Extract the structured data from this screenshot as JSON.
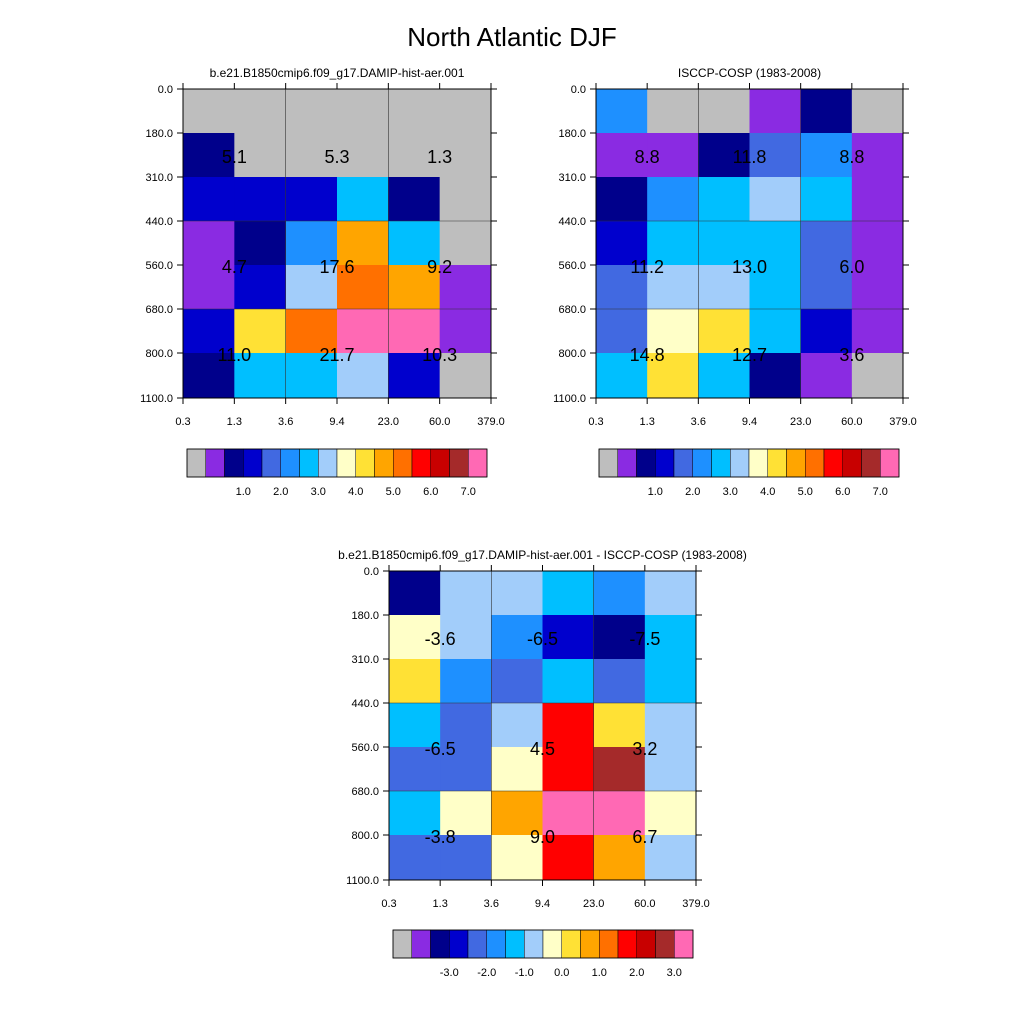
{
  "figure_title": "North Atlantic DJF",
  "palette": {
    "gray": "#BEBEBE",
    "purple": "#8A2BE2",
    "navy": "#00008B",
    "blue": "#0000CD",
    "royal": "#4169E1",
    "dodger": "#1E90FF",
    "sky": "#00BFFF",
    "lightblue": "#A2CDFA",
    "cream": "#FFFFC8",
    "gold": "#FFE135",
    "orange": "#FFA500",
    "darkorange": "#FF7000",
    "red": "#FF0000",
    "crimson": "#C80000",
    "brown": "#A52A2A",
    "pink": "#FF69B4"
  },
  "colorbar_order": [
    "gray",
    "purple",
    "navy",
    "blue",
    "royal",
    "dodger",
    "sky",
    "lightblue",
    "cream",
    "gold",
    "orange",
    "darkorange",
    "red",
    "crimson",
    "brown",
    "pink"
  ],
  "chart_data": [
    {
      "type": "heatmap",
      "title": "b.e21.B1850cmip6.f09_g17.DAMIP-hist-aer.001",
      "x_tick_labels": [
        "0.3",
        "1.3",
        "3.6",
        "9.4",
        "23.0",
        "60.0",
        "379.0"
      ],
      "y_tick_labels": [
        "0.0",
        "180.0",
        "310.0",
        "440.0",
        "560.0",
        "680.0",
        "800.0",
        "1100.0"
      ],
      "cell_colors": [
        [
          "gray",
          "gray",
          "gray",
          "gray",
          "gray",
          "gray"
        ],
        [
          "navy",
          "gray",
          "gray",
          "gray",
          "gray",
          "gray"
        ],
        [
          "blue",
          "blue",
          "blue",
          "sky",
          "navy",
          "gray"
        ],
        [
          "purple",
          "navy",
          "dodger",
          "orange",
          "sky",
          "gray"
        ],
        [
          "purple",
          "blue",
          "lightblue",
          "darkorange",
          "orange",
          "purple"
        ],
        [
          "blue",
          "gold",
          "darkorange",
          "pink",
          "pink",
          "purple"
        ],
        [
          "navy",
          "sky",
          "sky",
          "lightblue",
          "blue",
          "gray"
        ]
      ],
      "block_values": [
        [
          "5.1",
          "5.3",
          "1.3"
        ],
        [
          "4.7",
          "17.6",
          "9.2"
        ],
        [
          "11.0",
          "21.7",
          "10.3"
        ]
      ],
      "colorbar_labels": [
        "1.0",
        "2.0",
        "3.0",
        "4.0",
        "5.0",
        "6.0",
        "7.0"
      ]
    },
    {
      "type": "heatmap",
      "title": "ISCCP-COSP (1983-2008)",
      "x_tick_labels": [
        "0.3",
        "1.3",
        "3.6",
        "9.4",
        "23.0",
        "60.0",
        "379.0"
      ],
      "y_tick_labels": [
        "0.0",
        "180.0",
        "310.0",
        "440.0",
        "560.0",
        "680.0",
        "800.0",
        "1100.0"
      ],
      "cell_colors": [
        [
          "dodger",
          "gray",
          "gray",
          "purple",
          "navy",
          "gray"
        ],
        [
          "purple",
          "purple",
          "navy",
          "royal",
          "dodger",
          "purple"
        ],
        [
          "navy",
          "dodger",
          "sky",
          "lightblue",
          "sky",
          "purple"
        ],
        [
          "blue",
          "sky",
          "sky",
          "sky",
          "royal",
          "purple"
        ],
        [
          "royal",
          "lightblue",
          "lightblue",
          "sky",
          "royal",
          "purple"
        ],
        [
          "royal",
          "cream",
          "gold",
          "sky",
          "blue",
          "purple"
        ],
        [
          "sky",
          "gold",
          "sky",
          "navy",
          "purple",
          "gray"
        ]
      ],
      "block_values": [
        [
          "8.8",
          "11.8",
          "8.8"
        ],
        [
          "11.2",
          "13.0",
          "6.0"
        ],
        [
          "14.8",
          "12.7",
          "3.6"
        ]
      ],
      "colorbar_labels": [
        "1.0",
        "2.0",
        "3.0",
        "4.0",
        "5.0",
        "6.0",
        "7.0"
      ]
    },
    {
      "type": "heatmap",
      "title": "b.e21.B1850cmip6.f09_g17.DAMIP-hist-aer.001 - ISCCP-COSP (1983-2008)",
      "x_tick_labels": [
        "0.3",
        "1.3",
        "3.6",
        "9.4",
        "23.0",
        "60.0",
        "379.0"
      ],
      "y_tick_labels": [
        "0.0",
        "180.0",
        "310.0",
        "440.0",
        "560.0",
        "680.0",
        "800.0",
        "1100.0"
      ],
      "cell_colors": [
        [
          "navy",
          "lightblue",
          "lightblue",
          "sky",
          "dodger",
          "lightblue"
        ],
        [
          "cream",
          "lightblue",
          "dodger",
          "blue",
          "navy",
          "sky"
        ],
        [
          "gold",
          "dodger",
          "royal",
          "sky",
          "royal",
          "sky"
        ],
        [
          "sky",
          "royal",
          "lightblue",
          "red",
          "gold",
          "lightblue"
        ],
        [
          "royal",
          "royal",
          "cream",
          "red",
          "brown",
          "lightblue"
        ],
        [
          "sky",
          "cream",
          "orange",
          "pink",
          "pink",
          "cream"
        ],
        [
          "royal",
          "royal",
          "cream",
          "red",
          "orange",
          "lightblue"
        ]
      ],
      "block_values": [
        [
          "-3.6",
          "-6.5",
          "-7.5"
        ],
        [
          "-6.5",
          "4.5",
          "3.2"
        ],
        [
          "-3.8",
          "9.0",
          "6.7"
        ]
      ],
      "colorbar_labels": [
        "-3.0",
        "-2.0",
        "-1.0",
        "0.0",
        "1.0",
        "2.0",
        "3.0"
      ]
    }
  ]
}
